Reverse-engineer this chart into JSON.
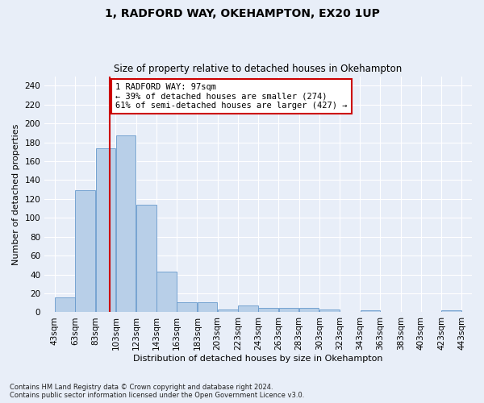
{
  "title1": "1, RADFORD WAY, OKEHAMPTON, EX20 1UP",
  "title2": "Size of property relative to detached houses in Okehampton",
  "xlabel": "Distribution of detached houses by size in Okehampton",
  "ylabel": "Number of detached properties",
  "footnote": "Contains HM Land Registry data © Crown copyright and database right 2024.\nContains public sector information licensed under the Open Government Licence v3.0.",
  "bin_labels": [
    "43sqm",
    "63sqm",
    "83sqm",
    "103sqm",
    "123sqm",
    "143sqm",
    "163sqm",
    "183sqm",
    "203sqm",
    "223sqm",
    "243sqm",
    "263sqm",
    "283sqm",
    "303sqm",
    "323sqm",
    "343sqm",
    "363sqm",
    "383sqm",
    "403sqm",
    "423sqm",
    "443sqm"
  ],
  "bar_centers": [
    53,
    73,
    93,
    113,
    133,
    153,
    173,
    193,
    213,
    233,
    253,
    273,
    293,
    313,
    333,
    353,
    373,
    393,
    413,
    433
  ],
  "bar_heights": [
    16,
    129,
    174,
    187,
    114,
    43,
    11,
    11,
    3,
    7,
    5,
    5,
    5,
    3,
    0,
    2,
    0,
    0,
    0,
    2
  ],
  "bar_color": "#b8cfe8",
  "bar_edge_color": "#6699cc",
  "property_size": 97,
  "property_label": "1 RADFORD WAY: 97sqm",
  "annotation_line1": "← 39% of detached houses are smaller (274)",
  "annotation_line2": "61% of semi-detached houses are larger (427) →",
  "vline_color": "#cc0000",
  "ylim": [
    0,
    250
  ],
  "yticks": [
    0,
    20,
    40,
    60,
    80,
    100,
    120,
    140,
    160,
    180,
    200,
    220,
    240
  ],
  "background_color": "#e8eef8",
  "grid_color": "#ffffff",
  "annotation_box_color": "#ffffff",
  "annotation_box_edge": "#cc0000"
}
